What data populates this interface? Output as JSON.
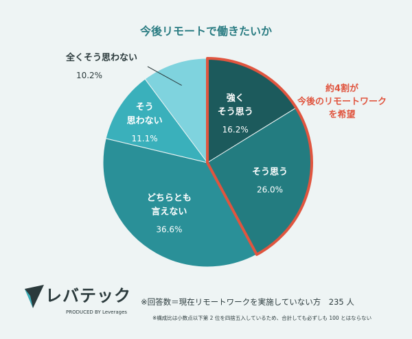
{
  "chart_data": {
    "type": "pie",
    "title": "今後リモートで働きたいか",
    "slices": [
      {
        "label_lines": [
          "強く",
          "そう思う"
        ],
        "label": "強くそう思う",
        "value": 16.2,
        "value_text": "16.2%",
        "color": "#1c5a5c"
      },
      {
        "label_lines": [
          "そう思う"
        ],
        "label": "そう思う",
        "value": 26.0,
        "value_text": "26.0%",
        "color": "#237c80"
      },
      {
        "label_lines": [
          "どちらとも",
          "言えない"
        ],
        "label": "どちらとも言えない",
        "value": 36.6,
        "value_text": "36.6%",
        "color": "#2a9098"
      },
      {
        "label_lines": [
          "そう",
          "思わない"
        ],
        "label": "そう思わない",
        "value": 11.1,
        "value_text": "11.1%",
        "color": "#3ab0bb"
      },
      {
        "label_lines": [
          "全くそう思わない"
        ],
        "label": "全くそう思わない",
        "value": 10.2,
        "value_text": "10.2%",
        "color": "#7fd3de"
      }
    ],
    "highlight_color": "#e0553f"
  },
  "callout": {
    "lines": [
      "約4割が",
      "今後のリモートワーク",
      "を希望"
    ]
  },
  "logo": {
    "text": "レバテック",
    "sub": "PRODUCED BY Leverages"
  },
  "note": "※回答数＝現在リモートワークを実施していない方　235 人",
  "footnote": "※構成比は小数点以下第 2 位を四捨五入しているため、合計しても必ずしも 100 とはならない"
}
